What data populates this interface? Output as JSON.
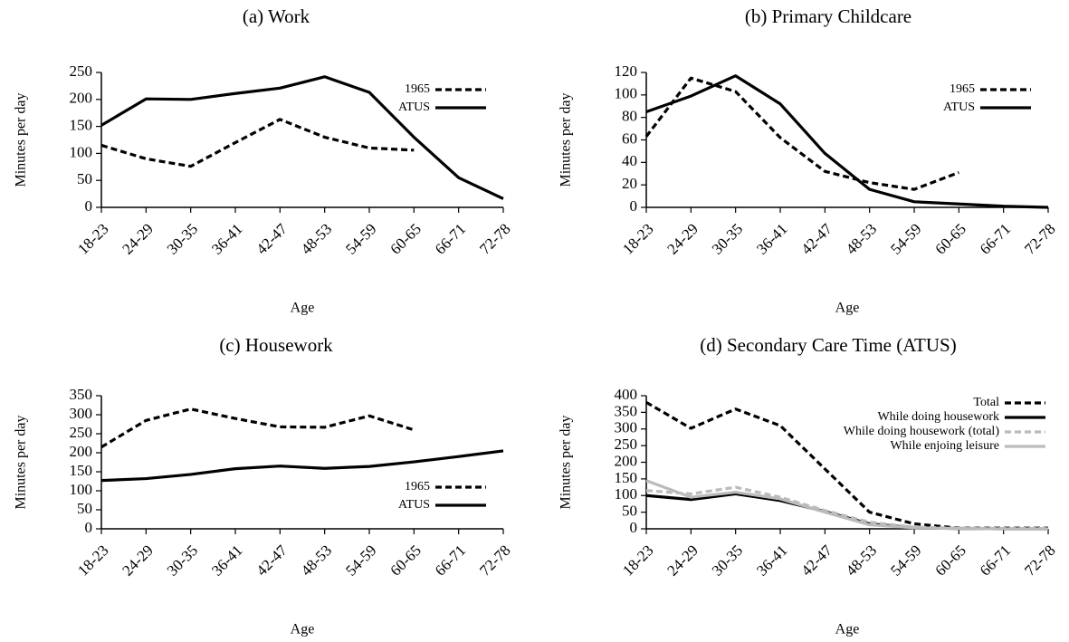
{
  "chart_data": [
    {
      "type": "line",
      "title": "(a) Work",
      "xlabel": "Age",
      "ylabel": "Minutes per day",
      "categories": [
        "18-23",
        "24-29",
        "30-35",
        "36-41",
        "42-47",
        "48-53",
        "54-59",
        "60-65",
        "66-71",
        "72-78"
      ],
      "series": [
        {
          "name": "1965",
          "color": "#000000",
          "style": "dashed",
          "values": [
            115,
            90,
            76,
            120,
            163,
            130,
            110,
            106,
            null,
            null
          ]
        },
        {
          "name": "ATUS",
          "color": "#000000",
          "style": "solid",
          "values": [
            152,
            201,
            200,
            211,
            221,
            242,
            213,
            130,
            55,
            16
          ]
        }
      ],
      "ylim": [
        0,
        250
      ],
      "yticks": [
        0,
        50,
        100,
        150,
        200,
        250
      ],
      "legend": "upper right"
    },
    {
      "type": "line",
      "title": "(b) Primary Childcare",
      "xlabel": "Age",
      "ylabel": "Minutes per day",
      "categories": [
        "18-23",
        "24-29",
        "30-35",
        "36-41",
        "42-47",
        "48-53",
        "54-59",
        "60-65",
        "66-71",
        "72-78"
      ],
      "series": [
        {
          "name": "1965",
          "color": "#000000",
          "style": "dashed",
          "values": [
            63,
            115,
            103,
            62,
            32,
            22,
            16,
            31,
            null,
            null
          ]
        },
        {
          "name": "ATUS",
          "color": "#000000",
          "style": "solid",
          "values": [
            85,
            99,
            117,
            92,
            48,
            16,
            5,
            3,
            1,
            0
          ]
        }
      ],
      "ylim": [
        0,
        120
      ],
      "yticks": [
        0,
        20,
        40,
        60,
        80,
        100,
        120
      ],
      "legend": "upper right"
    },
    {
      "type": "line",
      "title": "(c) Housework",
      "xlabel": "Age",
      "ylabel": "Minutes per day",
      "categories": [
        "18-23",
        "24-29",
        "30-35",
        "36-41",
        "42-47",
        "48-53",
        "54-59",
        "60-65",
        "66-71",
        "72-78"
      ],
      "series": [
        {
          "name": "1965",
          "color": "#000000",
          "style": "dashed",
          "values": [
            215,
            285,
            315,
            290,
            268,
            267,
            297,
            260,
            null,
            null
          ]
        },
        {
          "name": "ATUS",
          "color": "#000000",
          "style": "solid",
          "values": [
            127,
            132,
            143,
            158,
            165,
            159,
            164,
            176,
            190,
            205
          ]
        }
      ],
      "ylim": [
        0,
        350
      ],
      "yticks": [
        0,
        50,
        100,
        150,
        200,
        250,
        300,
        350
      ],
      "legend": "lower right"
    },
    {
      "type": "line",
      "title": "(d) Secondary Care Time (ATUS)",
      "xlabel": "Age",
      "ylabel": "Minutes per day",
      "categories": [
        "18-23",
        "24-29",
        "30-35",
        "36-41",
        "42-47",
        "48-53",
        "54-59",
        "60-65",
        "66-71",
        "72-78"
      ],
      "series": [
        {
          "name": "Total",
          "color": "#000000",
          "style": "dashed",
          "values": [
            380,
            302,
            360,
            310,
            180,
            50,
            15,
            2,
            2,
            2
          ]
        },
        {
          "name": "While doing housework",
          "color": "#000000",
          "style": "solid",
          "values": [
            100,
            88,
            105,
            85,
            52,
            15,
            3,
            1,
            0,
            0
          ]
        },
        {
          "name": "While doing housework (total)",
          "color": "#bbbbbb",
          "style": "dashed",
          "values": [
            115,
            105,
            125,
            95,
            55,
            20,
            5,
            2,
            1,
            1
          ]
        },
        {
          "name": "While enjoing leisure",
          "color": "#bbbbbb",
          "style": "solid",
          "values": [
            145,
            95,
            110,
            90,
            50,
            12,
            3,
            1,
            0,
            0
          ]
        }
      ],
      "ylim": [
        0,
        400
      ],
      "yticks": [
        0,
        50,
        100,
        150,
        200,
        250,
        300,
        350,
        400
      ],
      "legend": "upper right"
    }
  ]
}
